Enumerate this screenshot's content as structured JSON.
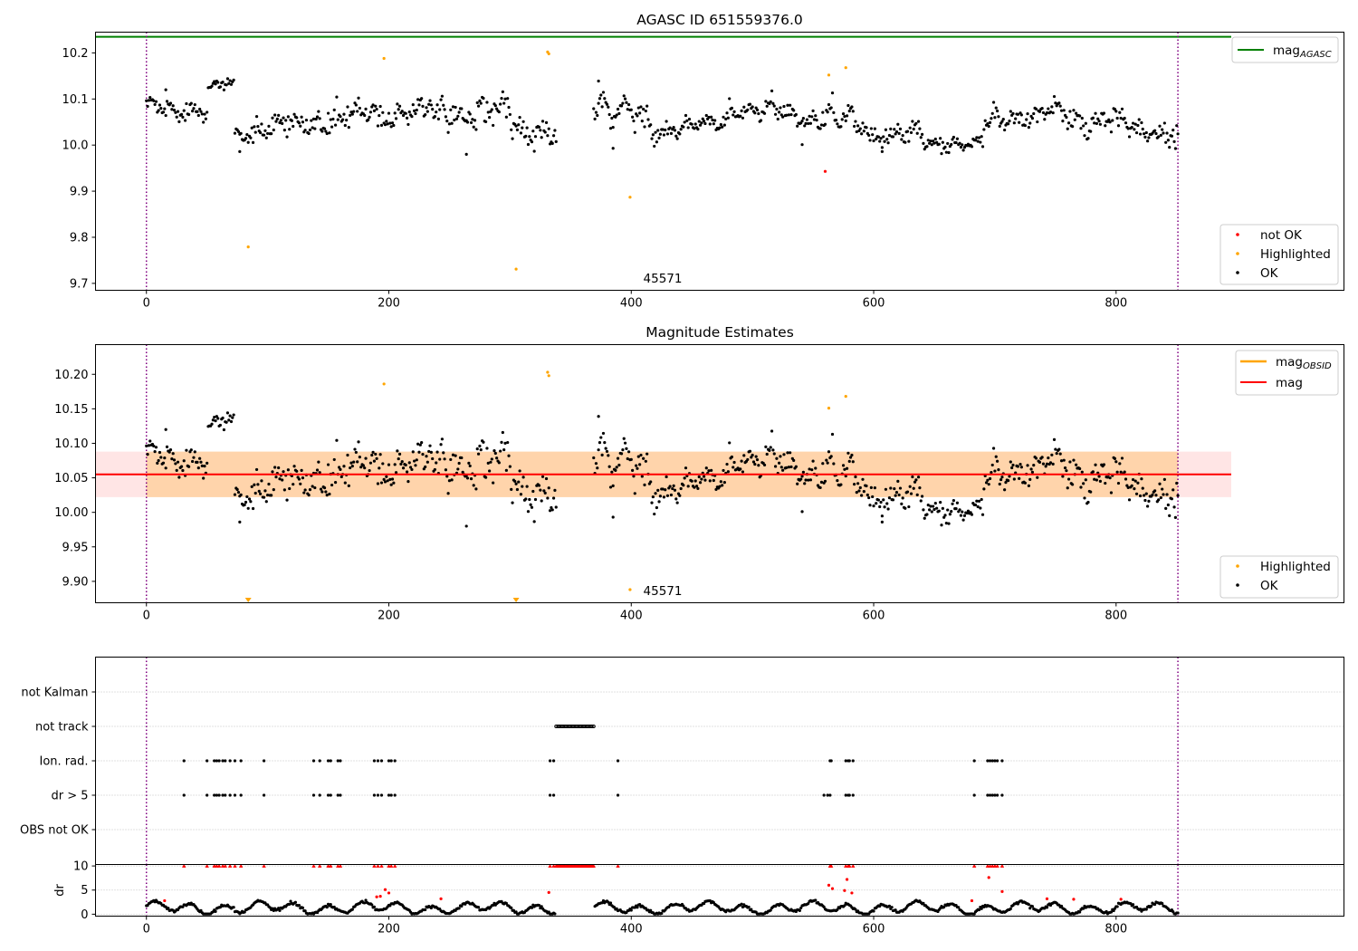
{
  "chart_data": [
    {
      "type": "scatter",
      "title": "AGASC ID 651559376.0",
      "xlabel": "",
      "ylabel": "",
      "xlim": [
        -42,
        988
      ],
      "ylim": [
        9.685,
        10.245
      ],
      "xticks": [
        0,
        200,
        400,
        600,
        800
      ],
      "yticks": [
        "9.7",
        "9.8",
        "9.9",
        "10.0",
        "10.1",
        "10.2"
      ],
      "yticks_values": [
        9.7,
        9.8,
        9.9,
        10.0,
        10.1,
        10.2
      ],
      "vlines": [
        0,
        851
      ],
      "hline": {
        "name": "mag_AGASC",
        "value": 10.235,
        "x_range": [
          -42,
          895
        ],
        "color": "#008000"
      },
      "legend_upper": {
        "entries": [
          {
            "label_main": "mag",
            "label_sub": "AGASC",
            "color": "#008000"
          }
        ]
      },
      "legend_lower": {
        "entries": [
          {
            "label": "not OK",
            "color": "#ff0000"
          },
          {
            "label": "Highlighted",
            "color": "#ffa500"
          },
          {
            "label": "OK",
            "color": "#000000"
          }
        ]
      },
      "annotation": {
        "text": "45571",
        "x": 410,
        "y": 9.71
      },
      "series": [
        {
          "name": "not OK",
          "color": "#ff0000",
          "points": [
            [
              560,
              9.943
            ]
          ]
        },
        {
          "name": "Highlighted",
          "color": "#ffa500",
          "points": [
            [
              84,
              9.779
            ],
            [
              196,
              10.188
            ],
            [
              305,
              9.731
            ],
            [
              331,
              10.202
            ],
            [
              332,
              10.198
            ],
            [
              399,
              9.887
            ],
            [
              563,
              10.152
            ],
            [
              577,
              10.168
            ]
          ]
        },
        {
          "name": "OK",
          "color": "#000000",
          "segments": [
            {
              "x_start": 0,
              "x_end": 50,
              "y_start": 10.08,
              "y_end": 10.08,
              "noise": 0.018
            },
            {
              "x_start": 51,
              "x_end": 72,
              "y_start": 10.125,
              "y_end": 10.13,
              "noise": 0.01
            },
            {
              "x_start": 73,
              "x_end": 135,
              "y_start": 10.025,
              "y_end": 10.045,
              "noise": 0.02
            },
            {
              "x_start": 136,
              "x_end": 235,
              "y_start": 10.05,
              "y_end": 10.08,
              "noise": 0.022
            },
            {
              "x_start": 236,
              "x_end": 300,
              "y_start": 10.06,
              "y_end": 10.08,
              "noise": 0.025
            },
            {
              "x_start": 301,
              "x_end": 338,
              "y_start": 10.04,
              "y_end": 10.02,
              "noise": 0.025
            },
            {
              "x_start": 369,
              "x_end": 420,
              "y_start": 10.09,
              "y_end": 10.045,
              "noise": 0.028
            },
            {
              "x_start": 421,
              "x_end": 480,
              "y_start": 10.03,
              "y_end": 10.05,
              "noise": 0.015
            },
            {
              "x_start": 481,
              "x_end": 555,
              "y_start": 10.08,
              "y_end": 10.06,
              "noise": 0.018
            },
            {
              "x_start": 556,
              "x_end": 595,
              "y_start": 10.07,
              "y_end": 10.04,
              "noise": 0.025
            },
            {
              "x_start": 596,
              "x_end": 640,
              "y_start": 10.02,
              "y_end": 10.025,
              "noise": 0.018
            },
            {
              "x_start": 641,
              "x_end": 690,
              "y_start": 10.005,
              "y_end": 10.005,
              "noise": 0.012
            },
            {
              "x_start": 691,
              "x_end": 760,
              "y_start": 10.055,
              "y_end": 10.07,
              "noise": 0.02
            },
            {
              "x_start": 761,
              "x_end": 851,
              "y_start": 10.06,
              "y_end": 10.025,
              "noise": 0.02
            }
          ],
          "extra_points": [
            [
              16,
              10.12
            ],
            [
              77,
              9.986
            ],
            [
              264,
              9.98
            ],
            [
              373,
              10.139
            ],
            [
              385,
              9.993
            ],
            [
              541,
              10.001
            ],
            [
              607,
              9.986
            ]
          ]
        }
      ]
    },
    {
      "type": "scatter",
      "title": "Magnitude Estimates",
      "xlabel": "",
      "ylabel": "",
      "xlim": [
        -42,
        988
      ],
      "ylim": [
        9.869,
        10.243
      ],
      "xticks": [
        0,
        200,
        400,
        600,
        800
      ],
      "yticks": [
        "9.90",
        "9.95",
        "10.00",
        "10.05",
        "10.10",
        "10.15",
        "10.20"
      ],
      "yticks_values": [
        9.9,
        9.95,
        10.0,
        10.05,
        10.1,
        10.15,
        10.2
      ],
      "vlines": [
        0,
        851
      ],
      "mag_line": {
        "name": "mag",
        "value": 10.055,
        "x_range": [
          -42,
          895
        ],
        "color": "#ff0000"
      },
      "mag_band": {
        "low": 10.022,
        "high": 10.088,
        "x_range": [
          -42,
          895
        ]
      },
      "mag_obsid_band": {
        "low": 10.022,
        "high": 10.088,
        "x_range": [
          0,
          851
        ]
      },
      "legend_upper": {
        "entries": [
          {
            "label_main": "mag",
            "label_sub": "OBSID",
            "color": "#ffa500"
          },
          {
            "label_main": "mag",
            "label_sub": "",
            "color": "#ff0000"
          }
        ]
      },
      "legend_lower": {
        "entries": [
          {
            "label": "Highlighted",
            "color": "#ffa500"
          },
          {
            "label": "OK",
            "color": "#000000"
          }
        ]
      },
      "annotation": {
        "text": "45571",
        "x": 410,
        "y": 9.883
      },
      "highlighted_arrows": [
        [
          84,
          9.871
        ],
        [
          305,
          9.871
        ]
      ],
      "series": [
        {
          "name": "Highlighted",
          "color": "#ffa500",
          "points": [
            [
              196,
              10.186
            ],
            [
              331,
              10.203
            ],
            [
              332,
              10.198
            ],
            [
              399,
              9.888
            ],
            [
              563,
              10.151
            ],
            [
              577,
              10.168
            ]
          ]
        }
      ]
    },
    {
      "type": "scatter",
      "title": "",
      "xlabel": "",
      "ylabel": "",
      "xlim": [
        -42,
        988
      ],
      "categories": [
        "OBS not OK",
        "dr > 5",
        "Ion. rad.",
        "not track",
        "not Kalman"
      ],
      "vlines": [
        0,
        851
      ],
      "flags": {
        "dr > 5": [
          31,
          50,
          56,
          58,
          60,
          63,
          65,
          69,
          73,
          78,
          97,
          138,
          143,
          150,
          152,
          158,
          160,
          188,
          191,
          194,
          200,
          202,
          205,
          333,
          336,
          389,
          559,
          562,
          564,
          577,
          579,
          580,
          583,
          683,
          694,
          696,
          698,
          700,
          702,
          706
        ],
        "Ion. rad.": [
          31,
          50,
          56,
          58,
          60,
          63,
          65,
          69,
          73,
          78,
          97,
          138,
          143,
          150,
          152,
          158,
          160,
          188,
          191,
          194,
          200,
          202,
          205,
          333,
          336,
          389,
          564,
          565,
          577,
          579,
          580,
          583,
          683,
          694,
          696,
          698,
          700,
          702,
          706
        ],
        "not track": {
          "x_start": 338,
          "x_end": 369,
          "step": 1
        }
      }
    },
    {
      "type": "scatter",
      "title": "",
      "xlabel": "",
      "ylabel": "dr",
      "xlim": [
        -42,
        988
      ],
      "ylim": [
        -0.4,
        10.3
      ],
      "yticks": [
        "0",
        "5",
        "10"
      ],
      "yticks_values": [
        0,
        5,
        10
      ],
      "gridlines": [
        0,
        5,
        10
      ],
      "vlines": [
        0,
        851
      ],
      "series": [
        {
          "name": "dr (OK)",
          "color": "#000000"
        },
        {
          "name": "dr (flagged)",
          "color": "#ff0000",
          "points": [
            [
              15,
              2.8
            ],
            [
              190,
              3.6
            ],
            [
              193,
              3.7
            ],
            [
              197,
              5.1
            ],
            [
              200,
              4.4
            ],
            [
              243,
              3.2
            ],
            [
              332,
              4.5
            ],
            [
              563,
              6.0
            ],
            [
              566,
              5.3
            ],
            [
              576,
              4.9
            ],
            [
              578,
              7.2
            ],
            [
              582,
              4.4
            ],
            [
              681,
              2.8
            ],
            [
              695,
              7.6
            ],
            [
              706,
              4.7
            ],
            [
              743,
              3.2
            ],
            [
              765,
              3.1
            ],
            [
              804,
              3.1
            ]
          ]
        },
        {
          "name": "dr capped",
          "color": "#ff0000",
          "capped_value": 10,
          "x": [
            31,
            50,
            56,
            58,
            60,
            63,
            65,
            69,
            73,
            78,
            97,
            138,
            143,
            150,
            152,
            158,
            160,
            188,
            191,
            194,
            200,
            202,
            205,
            333,
            336,
            389,
            564,
            565,
            577,
            579,
            580,
            583,
            683,
            694,
            696,
            698,
            700,
            702,
            706
          ]
        },
        {
          "name": "dr capped track",
          "capped_value": 10,
          "x_range": [
            338,
            369
          ]
        }
      ]
    }
  ]
}
